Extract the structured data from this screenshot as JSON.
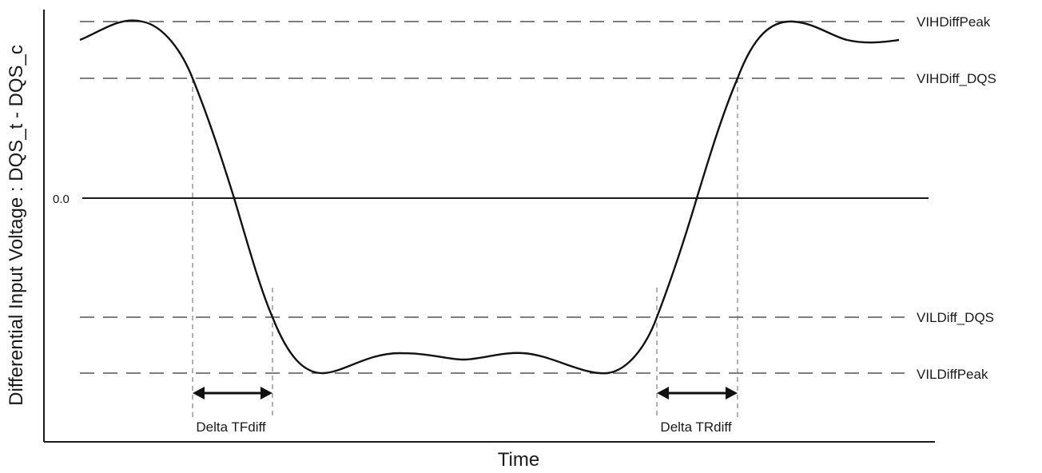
{
  "diagram": {
    "y_axis_label": "Differential Input Voltage : DQS_t - DQS_c",
    "x_axis_label": "Time",
    "zero_label": "0.0",
    "levels": {
      "vih_diff_peak": "VIHDiffPeak",
      "vih_diff_dqs": "VIHDiff_DQS",
      "vil_diff_dqs": "VILDiff_DQS",
      "vil_diff_peak": "VILDiffPeak"
    },
    "intervals": {
      "fall": "Delta TFdiff",
      "rise": "Delta TRdiff"
    },
    "colors": {
      "waveform": "#111111",
      "reference_lines": "#555555",
      "text": "#1a1a1a"
    }
  }
}
